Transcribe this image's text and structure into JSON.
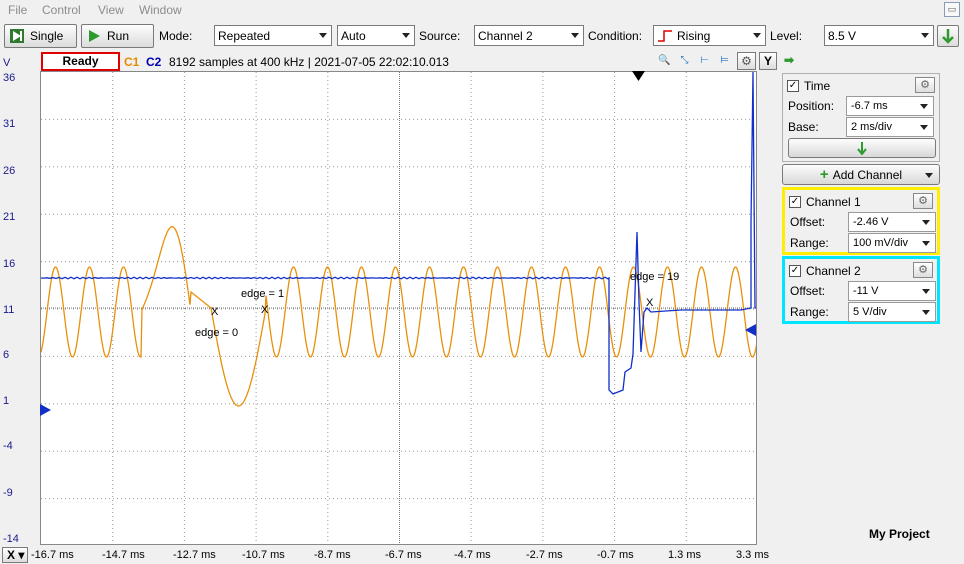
{
  "menu": {
    "file": "File",
    "control": "Control",
    "view": "View",
    "window": "Window"
  },
  "toolbar": {
    "single_label": "Single",
    "run_label": "Run",
    "mode_label": "Mode:",
    "mode_value": "Repeated",
    "auto_value": "Auto",
    "source_label": "Source:",
    "source_value": "Channel 2",
    "condition_label": "Condition:",
    "condition_value": "Rising",
    "level_label": "Level:",
    "level_value": "8.5 V"
  },
  "status": {
    "ready": "Ready",
    "c1": "C1",
    "c2": "C2",
    "info": "8192 samples at 400 kHz | 2021-07-05 22:02:10.013",
    "y_button": "Y"
  },
  "plot": {
    "y_unit": "V",
    "y_ticks": [
      "36",
      "31",
      "26",
      "21",
      "16",
      "11",
      "6",
      "1",
      "-4",
      "-9",
      "-14"
    ],
    "x_ticks": [
      "-16.7 ms",
      "-14.7 ms",
      "-12.7 ms",
      "-10.7 ms",
      "-8.7 ms",
      "-6.7 ms",
      "-4.7 ms",
      "-2.7 ms",
      "-0.7 ms",
      "1.3 ms",
      "3.3 ms"
    ],
    "annotations": {
      "edge0": "edge = 0",
      "edge1": "edge = 1",
      "edge19": "edge = 19"
    },
    "marker": "X",
    "colors": {
      "ch1": "#e8900a",
      "ch2": "#1030c8",
      "grid": "#9a9a9a"
    }
  },
  "xbar": {
    "x_button": "X"
  },
  "panel": {
    "time": {
      "label": "Time",
      "position_label": "Position:",
      "position_value": "-6.7 ms",
      "base_label": "Base:",
      "base_value": "2 ms/div"
    },
    "add_channel": "Add Channel",
    "channel1": {
      "label": "Channel 1",
      "offset_label": "Offset:",
      "offset_value": "-2.46 V",
      "range_label": "Range:",
      "range_value": "100 mV/div",
      "border_color": "#ffee00"
    },
    "channel2": {
      "label": "Channel 2",
      "offset_label": "Offset:",
      "offset_value": "-11 V",
      "range_label": "Range:",
      "range_value": "5 V/div",
      "border_color": "#00e5ff"
    },
    "project": "My Project"
  }
}
